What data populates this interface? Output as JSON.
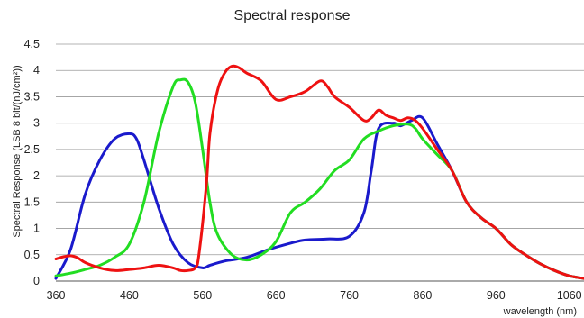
{
  "chart_data": {
    "type": "line",
    "title": "Spectral response",
    "xlabel": "wavelength (nm)",
    "ylabel": "Spectral Response (LSB 8 bit/(nJ/cm²))",
    "xlim": [
      360,
      1080
    ],
    "ylim": [
      0,
      4.5
    ],
    "xticks": [
      360,
      460,
      560,
      660,
      760,
      860,
      960,
      1060
    ],
    "yticks": [
      0,
      0.5,
      1,
      1.5,
      2,
      2.5,
      3,
      3.5,
      4,
      4.5
    ],
    "ytick_labels": [
      "0",
      "0.5",
      "1",
      "1.5",
      "2",
      "2.5",
      "3",
      "3.5",
      "4",
      "4.5"
    ],
    "grid": "horizontal",
    "series": [
      {
        "color": "#1a1acc",
        "x": [
          360,
          380,
          400,
          420,
          440,
          460,
          470,
          480,
          500,
          520,
          540,
          560,
          570,
          590,
          620,
          650,
          680,
          700,
          730,
          760,
          780,
          790,
          800,
          820,
          830,
          845,
          860,
          880,
          900,
          920,
          940,
          960,
          980,
          1000,
          1020,
          1040,
          1060,
          1080
        ],
        "y": [
          0.05,
          0.6,
          1.65,
          2.3,
          2.7,
          2.8,
          2.7,
          2.3,
          1.4,
          0.7,
          0.35,
          0.25,
          0.3,
          0.38,
          0.45,
          0.6,
          0.72,
          0.78,
          0.8,
          0.85,
          1.3,
          2.1,
          2.9,
          3.0,
          2.95,
          3.05,
          3.1,
          2.6,
          2.1,
          1.5,
          1.2,
          1.0,
          0.7,
          0.5,
          0.33,
          0.2,
          0.1,
          0.05
        ]
      },
      {
        "color": "#22dd22",
        "x": [
          360,
          380,
          400,
          420,
          440,
          460,
          480,
          500,
          520,
          530,
          540,
          550,
          560,
          570,
          580,
          600,
          620,
          640,
          660,
          680,
          700,
          720,
          740,
          760,
          780,
          800,
          820,
          840,
          850,
          860,
          880,
          900,
          920,
          940,
          960,
          980,
          1000,
          1020,
          1040,
          1060,
          1080
        ],
        "y": [
          0.1,
          0.15,
          0.22,
          0.3,
          0.45,
          0.7,
          1.5,
          2.8,
          3.7,
          3.82,
          3.78,
          3.4,
          2.5,
          1.5,
          0.9,
          0.5,
          0.4,
          0.5,
          0.75,
          1.3,
          1.5,
          1.75,
          2.1,
          2.3,
          2.7,
          2.85,
          2.95,
          2.98,
          2.9,
          2.7,
          2.4,
          2.1,
          1.5,
          1.2,
          1.0,
          0.7,
          0.5,
          0.33,
          0.2,
          0.1,
          0.05
        ]
      },
      {
        "color": "#ee1111",
        "x": [
          360,
          370,
          380,
          390,
          400,
          420,
          440,
          460,
          480,
          500,
          520,
          530,
          540,
          550,
          555,
          565,
          570,
          580,
          590,
          600,
          610,
          620,
          640,
          660,
          680,
          700,
          720,
          730,
          740,
          760,
          780,
          790,
          800,
          810,
          820,
          830,
          840,
          850,
          860,
          880,
          900,
          920,
          940,
          960,
          980,
          1000,
          1020,
          1040,
          1060,
          1080
        ],
        "y": [
          0.42,
          0.46,
          0.48,
          0.44,
          0.35,
          0.25,
          0.2,
          0.22,
          0.25,
          0.3,
          0.25,
          0.2,
          0.2,
          0.25,
          0.5,
          1.8,
          2.8,
          3.6,
          3.95,
          4.08,
          4.05,
          3.95,
          3.8,
          3.45,
          3.5,
          3.6,
          3.8,
          3.7,
          3.5,
          3.3,
          3.05,
          3.1,
          3.25,
          3.15,
          3.1,
          3.05,
          3.1,
          3.05,
          2.9,
          2.5,
          2.1,
          1.5,
          1.2,
          1.0,
          0.7,
          0.5,
          0.33,
          0.2,
          0.1,
          0.05
        ]
      }
    ]
  }
}
